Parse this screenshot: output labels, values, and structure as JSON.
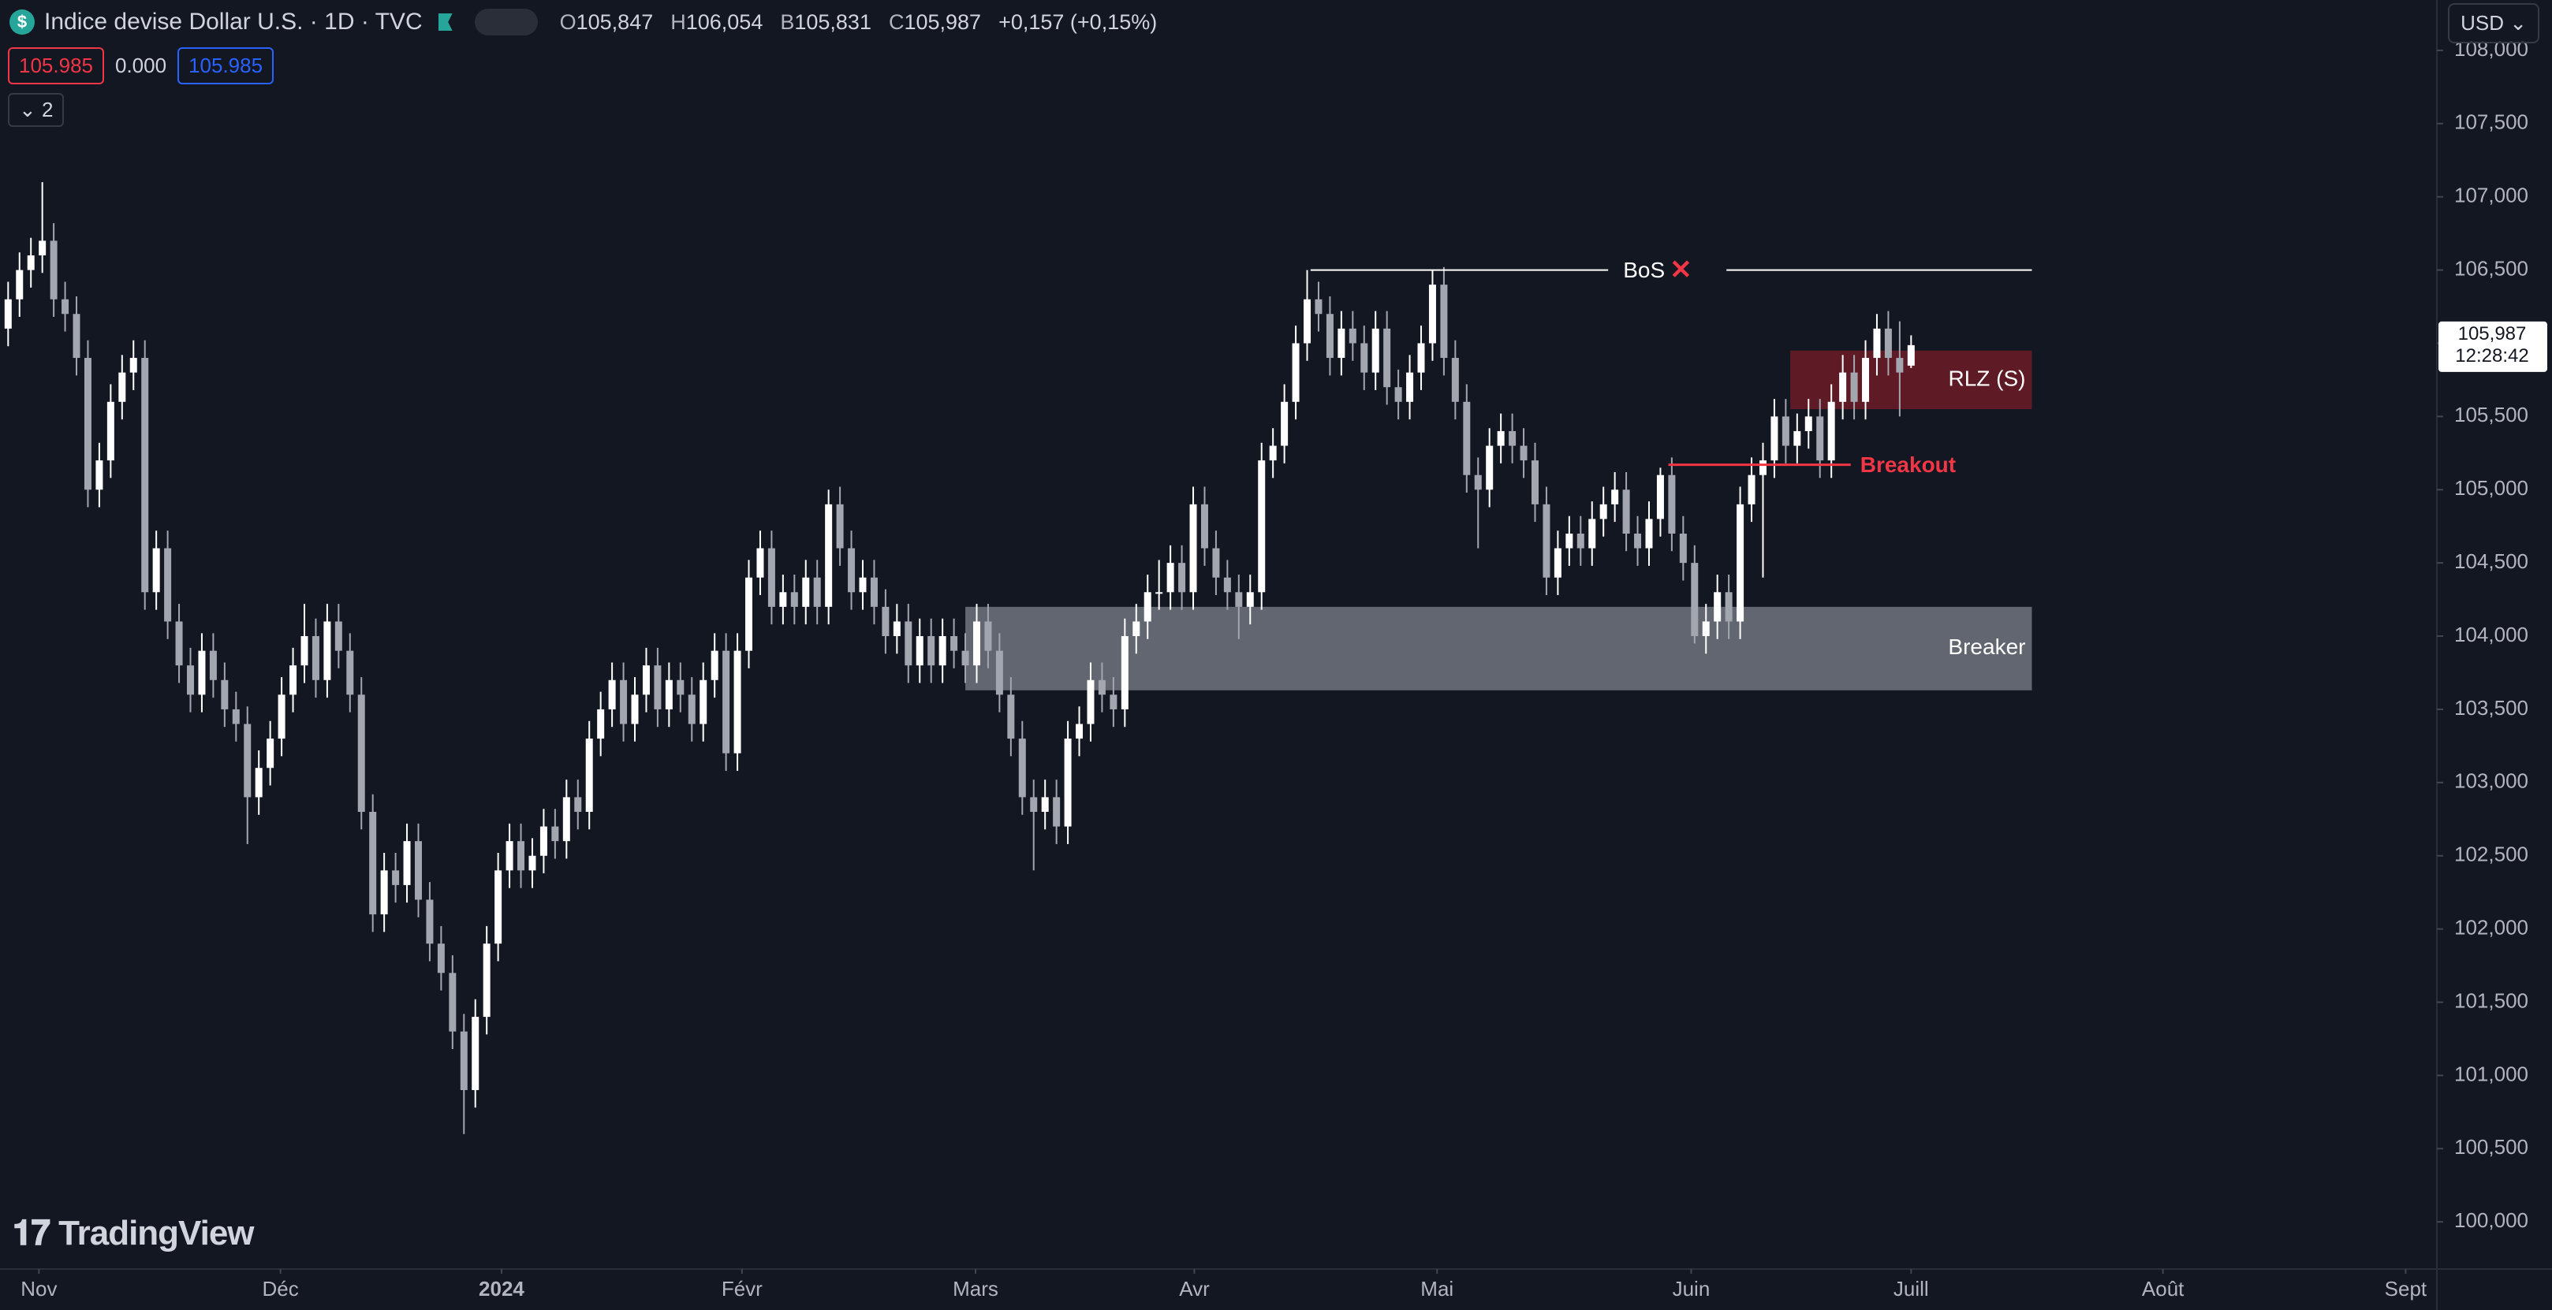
{
  "ui": {
    "symbol": "Indice devise Dollar U.S. · 1D · TVC",
    "quote": [
      {
        "key": "O",
        "value": "105,847"
      },
      {
        "key": "H",
        "value": "106,054"
      },
      {
        "key": "B",
        "value": "105,831"
      },
      {
        "key": "C",
        "value": "105,987"
      }
    ],
    "change": "+0,157 (+0,15%)",
    "sell": "105.985",
    "spread": "0.000",
    "buy": "105.985",
    "indicators": "2",
    "currency": "USD",
    "last_price": "105,987",
    "countdown": "12:28:42",
    "brand": "TradingView"
  },
  "chart_data": {
    "type": "candlestick",
    "up_color": "#ffffff",
    "down_color": "#a3a6af",
    "ohlc": [
      [
        106.1,
        106.42,
        105.98,
        106.3
      ],
      [
        106.3,
        106.62,
        106.18,
        106.5
      ],
      [
        106.5,
        106.72,
        106.38,
        106.6
      ],
      [
        106.6,
        107.1,
        106.48,
        106.7
      ],
      [
        106.7,
        106.82,
        106.18,
        106.3
      ],
      [
        106.3,
        106.42,
        106.08,
        106.2
      ],
      [
        106.2,
        106.32,
        105.78,
        105.9
      ],
      [
        105.9,
        106.02,
        104.88,
        105.0
      ],
      [
        105.0,
        105.32,
        104.88,
        105.2
      ],
      [
        105.2,
        105.72,
        105.08,
        105.6
      ],
      [
        105.6,
        105.92,
        105.48,
        105.8
      ],
      [
        105.8,
        106.02,
        105.68,
        105.9
      ],
      [
        105.9,
        106.02,
        104.18,
        104.3
      ],
      [
        104.3,
        104.72,
        104.18,
        104.6
      ],
      [
        104.6,
        104.72,
        103.98,
        104.1
      ],
      [
        104.1,
        104.22,
        103.68,
        103.8
      ],
      [
        103.8,
        103.92,
        103.48,
        103.6
      ],
      [
        103.6,
        104.02,
        103.48,
        103.9
      ],
      [
        103.9,
        104.02,
        103.58,
        103.7
      ],
      [
        103.7,
        103.82,
        103.38,
        103.5
      ],
      [
        103.5,
        103.62,
        103.28,
        103.4
      ],
      [
        103.4,
        103.52,
        102.58,
        102.9
      ],
      [
        102.9,
        103.22,
        102.78,
        103.1
      ],
      [
        103.1,
        103.42,
        102.98,
        103.3
      ],
      [
        103.3,
        103.72,
        103.18,
        103.6
      ],
      [
        103.6,
        103.92,
        103.48,
        103.8
      ],
      [
        103.8,
        104.22,
        103.68,
        104.0
      ],
      [
        104.0,
        104.12,
        103.58,
        103.7
      ],
      [
        103.7,
        104.22,
        103.58,
        104.1
      ],
      [
        104.1,
        104.22,
        103.78,
        103.9
      ],
      [
        103.9,
        104.02,
        103.48,
        103.6
      ],
      [
        103.6,
        103.72,
        102.68,
        102.8
      ],
      [
        102.8,
        102.92,
        101.98,
        102.1
      ],
      [
        102.1,
        102.52,
        101.98,
        102.4
      ],
      [
        102.4,
        102.52,
        102.18,
        102.3
      ],
      [
        102.3,
        102.72,
        102.18,
        102.6
      ],
      [
        102.6,
        102.72,
        102.08,
        102.2
      ],
      [
        102.2,
        102.32,
        101.78,
        101.9
      ],
      [
        101.9,
        102.02,
        101.58,
        101.7
      ],
      [
        101.7,
        101.82,
        101.18,
        101.3
      ],
      [
        101.3,
        101.42,
        100.6,
        100.9
      ],
      [
        100.9,
        101.52,
        100.78,
        101.4
      ],
      [
        101.4,
        102.02,
        101.28,
        101.9
      ],
      [
        101.9,
        102.52,
        101.78,
        102.4
      ],
      [
        102.4,
        102.72,
        102.28,
        102.6
      ],
      [
        102.6,
        102.72,
        102.28,
        102.4
      ],
      [
        102.4,
        102.62,
        102.28,
        102.5
      ],
      [
        102.5,
        102.82,
        102.38,
        102.7
      ],
      [
        102.7,
        102.82,
        102.48,
        102.6
      ],
      [
        102.6,
        103.02,
        102.48,
        102.9
      ],
      [
        102.9,
        103.02,
        102.68,
        102.8
      ],
      [
        102.8,
        103.42,
        102.68,
        103.3
      ],
      [
        103.3,
        103.62,
        103.18,
        103.5
      ],
      [
        103.5,
        103.82,
        103.38,
        103.7
      ],
      [
        103.7,
        103.82,
        103.28,
        103.4
      ],
      [
        103.4,
        103.72,
        103.28,
        103.6
      ],
      [
        103.6,
        103.92,
        103.48,
        103.8
      ],
      [
        103.8,
        103.92,
        103.38,
        103.5
      ],
      [
        103.5,
        103.82,
        103.38,
        103.7
      ],
      [
        103.7,
        103.82,
        103.48,
        103.6
      ],
      [
        103.6,
        103.72,
        103.28,
        103.4
      ],
      [
        103.4,
        103.82,
        103.28,
        103.7
      ],
      [
        103.7,
        104.02,
        103.58,
        103.9
      ],
      [
        103.9,
        104.02,
        103.08,
        103.2
      ],
      [
        103.2,
        104.02,
        103.08,
        103.9
      ],
      [
        103.9,
        104.52,
        103.78,
        104.4
      ],
      [
        104.4,
        104.72,
        104.28,
        104.6
      ],
      [
        104.6,
        104.72,
        104.08,
        104.2
      ],
      [
        104.2,
        104.42,
        104.08,
        104.3
      ],
      [
        104.3,
        104.42,
        104.08,
        104.2
      ],
      [
        104.2,
        104.52,
        104.08,
        104.4
      ],
      [
        104.4,
        104.52,
        104.08,
        104.2
      ],
      [
        104.2,
        105.0,
        104.08,
        104.9
      ],
      [
        104.9,
        105.02,
        104.48,
        104.6
      ],
      [
        104.6,
        104.72,
        104.18,
        104.3
      ],
      [
        104.3,
        104.52,
        104.18,
        104.4
      ],
      [
        104.4,
        104.52,
        104.08,
        104.2
      ],
      [
        104.2,
        104.32,
        103.88,
        104.0
      ],
      [
        104.0,
        104.22,
        103.88,
        104.1
      ],
      [
        104.1,
        104.22,
        103.68,
        103.8
      ],
      [
        103.8,
        104.12,
        103.68,
        104.0
      ],
      [
        104.0,
        104.12,
        103.68,
        103.8
      ],
      [
        103.8,
        104.12,
        103.68,
        104.0
      ],
      [
        104.0,
        104.12,
        103.78,
        103.9
      ],
      [
        103.9,
        104.02,
        103.68,
        103.8
      ],
      [
        103.8,
        104.22,
        103.68,
        104.1
      ],
      [
        104.1,
        104.22,
        103.78,
        103.9
      ],
      [
        103.9,
        104.02,
        103.48,
        103.6
      ],
      [
        103.6,
        103.72,
        103.18,
        103.3
      ],
      [
        103.3,
        103.42,
        102.78,
        102.9
      ],
      [
        102.9,
        103.02,
        102.4,
        102.8
      ],
      [
        102.8,
        103.02,
        102.68,
        102.9
      ],
      [
        102.9,
        103.02,
        102.58,
        102.7
      ],
      [
        102.7,
        103.42,
        102.58,
        103.3
      ],
      [
        103.3,
        103.52,
        103.18,
        103.4
      ],
      [
        103.4,
        103.82,
        103.28,
        103.7
      ],
      [
        103.7,
        103.82,
        103.48,
        103.6
      ],
      [
        103.6,
        103.72,
        103.38,
        103.5
      ],
      [
        103.5,
        104.12,
        103.38,
        104.0
      ],
      [
        104.0,
        104.22,
        103.88,
        104.1
      ],
      [
        104.1,
        104.42,
        103.98,
        104.3
      ],
      [
        104.3,
        104.52,
        104.18,
        104.3
      ],
      [
        104.3,
        104.62,
        104.18,
        104.5
      ],
      [
        104.5,
        104.62,
        104.18,
        104.3
      ],
      [
        104.3,
        105.02,
        104.18,
        104.9
      ],
      [
        104.9,
        105.02,
        104.48,
        104.6
      ],
      [
        104.6,
        104.72,
        104.28,
        104.4
      ],
      [
        104.4,
        104.52,
        104.18,
        104.3
      ],
      [
        104.3,
        104.42,
        103.98,
        104.2
      ],
      [
        104.2,
        104.42,
        104.08,
        104.3
      ],
      [
        104.3,
        105.32,
        104.18,
        105.2
      ],
      [
        105.2,
        105.42,
        105.08,
        105.3
      ],
      [
        105.3,
        105.72,
        105.18,
        105.6
      ],
      [
        105.6,
        106.12,
        105.48,
        106.0
      ],
      [
        106.0,
        106.5,
        105.88,
        106.3
      ],
      [
        106.3,
        106.42,
        106.08,
        106.2
      ],
      [
        106.2,
        106.32,
        105.78,
        105.9
      ],
      [
        105.9,
        106.22,
        105.78,
        106.1
      ],
      [
        106.1,
        106.22,
        105.88,
        106.0
      ],
      [
        106.0,
        106.12,
        105.68,
        105.8
      ],
      [
        105.8,
        106.22,
        105.68,
        106.1
      ],
      [
        106.1,
        106.22,
        105.58,
        105.7
      ],
      [
        105.7,
        105.82,
        105.48,
        105.6
      ],
      [
        105.6,
        105.92,
        105.48,
        105.8
      ],
      [
        105.8,
        106.12,
        105.68,
        106.0
      ],
      [
        106.0,
        106.5,
        105.88,
        106.4
      ],
      [
        106.4,
        106.52,
        105.78,
        105.9
      ],
      [
        105.9,
        106.02,
        105.48,
        105.6
      ],
      [
        105.6,
        105.72,
        104.98,
        105.1
      ],
      [
        105.1,
        105.22,
        104.6,
        105.0
      ],
      [
        105.0,
        105.42,
        104.88,
        105.3
      ],
      [
        105.3,
        105.52,
        105.18,
        105.4
      ],
      [
        105.4,
        105.52,
        105.18,
        105.3
      ],
      [
        105.3,
        105.42,
        105.08,
        105.2
      ],
      [
        105.2,
        105.32,
        104.78,
        104.9
      ],
      [
        104.9,
        105.02,
        104.28,
        104.4
      ],
      [
        104.4,
        104.72,
        104.28,
        104.6
      ],
      [
        104.6,
        104.82,
        104.48,
        104.7
      ],
      [
        104.7,
        104.82,
        104.48,
        104.6
      ],
      [
        104.6,
        104.92,
        104.48,
        104.8
      ],
      [
        104.8,
        105.02,
        104.68,
        104.9
      ],
      [
        104.9,
        105.12,
        104.78,
        105.0
      ],
      [
        105.0,
        105.12,
        104.58,
        104.7
      ],
      [
        104.7,
        104.82,
        104.48,
        104.6
      ],
      [
        104.6,
        104.92,
        104.48,
        104.8
      ],
      [
        104.8,
        105.15,
        104.68,
        105.1
      ],
      [
        105.1,
        105.22,
        104.58,
        104.7
      ],
      [
        104.7,
        104.82,
        104.38,
        104.5
      ],
      [
        104.5,
        104.62,
        103.95,
        104.0
      ],
      [
        104.0,
        104.22,
        103.88,
        104.1
      ],
      [
        104.1,
        104.42,
        103.98,
        104.3
      ],
      [
        104.3,
        104.42,
        103.98,
        104.1
      ],
      [
        104.1,
        105.02,
        103.98,
        104.9
      ],
      [
        104.9,
        105.22,
        104.78,
        105.1
      ],
      [
        105.1,
        105.32,
        104.4,
        105.2
      ],
      [
        105.2,
        105.62,
        105.08,
        105.5
      ],
      [
        105.5,
        105.62,
        105.18,
        105.3
      ],
      [
        105.3,
        105.52,
        105.18,
        105.4
      ],
      [
        105.4,
        105.62,
        105.28,
        105.5
      ],
      [
        105.5,
        105.62,
        105.08,
        105.2
      ],
      [
        105.2,
        105.72,
        105.08,
        105.6
      ],
      [
        105.6,
        105.92,
        105.48,
        105.8
      ],
      [
        105.8,
        105.92,
        105.48,
        105.6
      ],
      [
        105.6,
        106.02,
        105.48,
        105.9
      ],
      [
        105.9,
        106.2,
        105.78,
        106.1
      ],
      [
        106.1,
        106.22,
        105.78,
        105.9
      ],
      [
        105.9,
        106.15,
        105.5,
        105.8
      ],
      [
        105.847,
        106.054,
        105.831,
        105.987
      ]
    ],
    "xlim": [
      -0.714,
      213.14
    ],
    "xticks": [
      {
        "value": 2.7,
        "label": "Nov"
      },
      {
        "value": 23.9,
        "label": "Déc"
      },
      {
        "value": 43.3,
        "label": "2024"
      },
      {
        "value": 64.4,
        "label": "Févr"
      },
      {
        "value": 84.9,
        "label": "Mars"
      },
      {
        "value": 104.1,
        "label": "Avr"
      },
      {
        "value": 125.4,
        "label": "Mai"
      },
      {
        "value": 147.7,
        "label": "Juin"
      },
      {
        "value": 167,
        "label": "Juill"
      },
      {
        "value": 189.1,
        "label": "Août"
      },
      {
        "value": 210.4,
        "label": "Sept"
      }
    ],
    "ylim": [
      99.678,
      108.344
    ],
    "yticks": [
      {
        "value": 100,
        "label": "100,000"
      },
      {
        "value": 100.5,
        "label": "100,500"
      },
      {
        "value": 101,
        "label": "101,000"
      },
      {
        "value": 101.5,
        "label": "101,500"
      },
      {
        "value": 102,
        "label": "102,000"
      },
      {
        "value": 102.5,
        "label": "102,500"
      },
      {
        "value": 103,
        "label": "103,000"
      },
      {
        "value": 103.5,
        "label": "103,500"
      },
      {
        "value": 104,
        "label": "104,000"
      },
      {
        "value": 104.5,
        "label": "104,500"
      },
      {
        "value": 105,
        "label": "105,000"
      },
      {
        "value": 105.5,
        "label": "105,500"
      },
      {
        "value": 106,
        "label": "106,000"
      },
      {
        "value": 106.5,
        "label": "106,500"
      },
      {
        "value": 107,
        "label": "107,000"
      },
      {
        "value": 107.5,
        "label": "107,500"
      },
      {
        "value": 108,
        "label": "108,000"
      }
    ],
    "grid": false,
    "annotations": {
      "bos": {
        "label": "BoS",
        "mark": "✕",
        "price": 106.5,
        "x": [
          114.3,
          177.6
        ]
      },
      "breakout": {
        "label": "Breakout",
        "price": 105.17,
        "x": [
          145.7,
          161.7
        ]
      },
      "rlz": {
        "label": "RLZ (S)",
        "prices": [
          105.55,
          105.95
        ],
        "x": [
          156.4,
          177.6
        ]
      },
      "breaker": {
        "label": "Breaker",
        "prices": [
          103.63,
          104.2
        ],
        "x": [
          84,
          177.6
        ]
      }
    }
  }
}
